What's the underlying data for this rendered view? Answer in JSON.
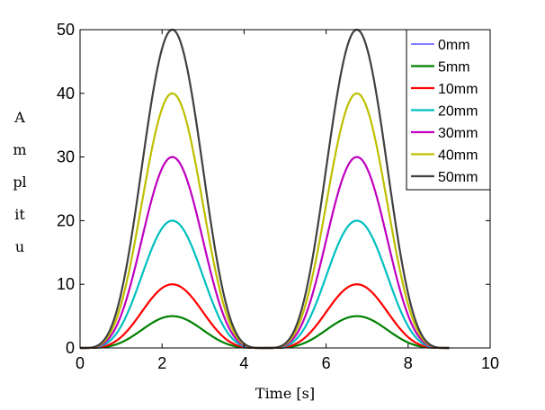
{
  "chart_data": {
    "type": "line",
    "title": "",
    "xlabel": "Time [s]",
    "ylabel_lines": [
      "A",
      "m",
      "pl",
      "it",
      "u"
    ],
    "xlim": [
      0,
      10
    ],
    "ylim": [
      0,
      50
    ],
    "xticks": [
      "0",
      "2",
      "4",
      "6",
      "8",
      "10"
    ],
    "yticks": [
      "0",
      "10",
      "20",
      "30",
      "40",
      "50"
    ],
    "grid": false,
    "legend_position": "top-right",
    "x_range": [
      0,
      9
    ],
    "peak_times": [
      2.25,
      6.75
    ],
    "series": [
      {
        "name": "0mm",
        "amplitude": 0,
        "color": "#0000ff"
      },
      {
        "name": "5mm",
        "amplitude": 5,
        "color": "#008000"
      },
      {
        "name": "10mm",
        "amplitude": 10,
        "color": "#ff0000"
      },
      {
        "name": "20mm",
        "amplitude": 20,
        "color": "#00bfbf"
      },
      {
        "name": "30mm",
        "amplitude": 30,
        "color": "#bf00bf"
      },
      {
        "name": "40mm",
        "amplitude": 40,
        "color": "#bfbf00"
      },
      {
        "name": "50mm",
        "amplitude": 50,
        "color": "#404040"
      }
    ]
  }
}
